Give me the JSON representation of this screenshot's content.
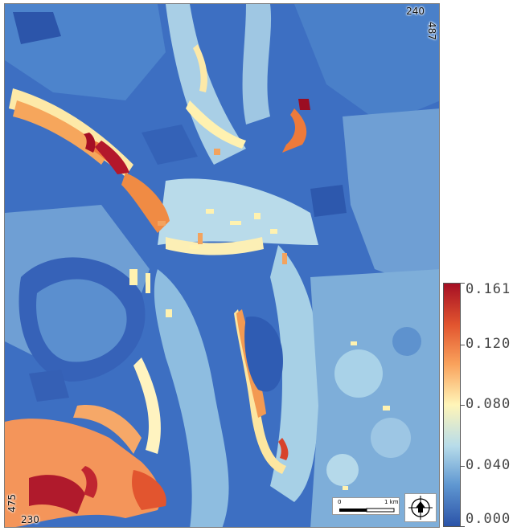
{
  "map": {
    "corner_labels": {
      "top_right_x": "240",
      "top_right_y": "487",
      "bottom_left_y": "475",
      "bottom_left_x": "230"
    },
    "scale_bar": {
      "start_label": "0",
      "end_label": "1 km"
    },
    "compass": {
      "icon": "north-arrow-icon"
    }
  },
  "legend": {
    "min": 0.0,
    "max": 0.161,
    "tick_labels": [
      "0.161",
      "0.120",
      "0.080",
      "0.040",
      "0.000"
    ],
    "tick_values": [
      0.161,
      0.12,
      0.08,
      0.04,
      0.0
    ],
    "colors": [
      "#2b53a8",
      "#5f97d1",
      "#b7dcea",
      "#fff5b8",
      "#f9a15b",
      "#e2552f",
      "#a50f24"
    ]
  }
}
